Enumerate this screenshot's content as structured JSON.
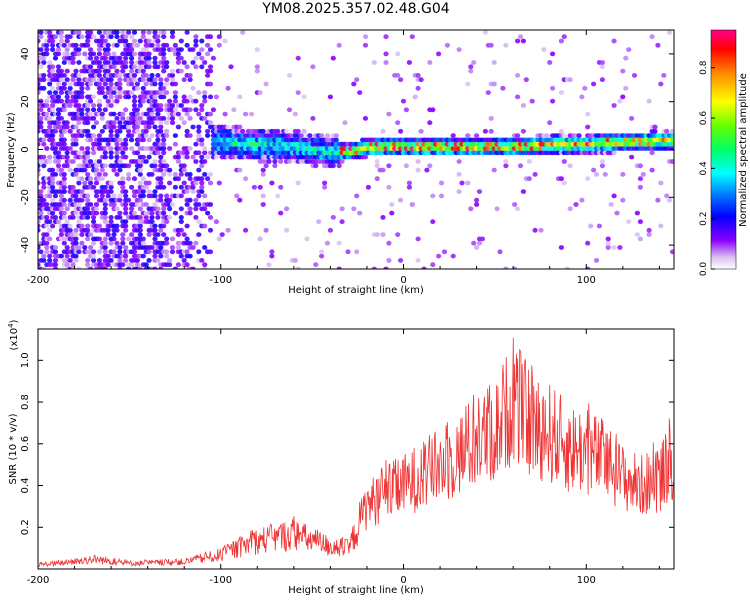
{
  "chart_data": [
    {
      "type": "heatmap",
      "title": "YM08.2025.357.02.48.G04",
      "xlabel": "Height of straight line (km)",
      "ylabel": "Frequency (Hz)",
      "xlim": [
        -200,
        148
      ],
      "ylim": [
        -50,
        50
      ],
      "xticks": [
        -200,
        -100,
        0,
        100
      ],
      "xtick_labels": [
        "-200",
        "-100",
        "0",
        "100"
      ],
      "yticks": [
        -40,
        -20,
        0,
        20,
        40
      ],
      "ytick_labels": [
        "-40",
        "-20",
        "0",
        "20",
        "40"
      ],
      "colorbar": {
        "label": "Normalized spectral amplitude",
        "range": [
          0,
          0.95
        ],
        "ticks": [
          0,
          0.2,
          0.4,
          0.6,
          0.8
        ],
        "tick_labels": [
          "0.0",
          "0.2",
          "0.4",
          "0.6",
          "0.8"
        ],
        "colormap": "rainbow"
      },
      "description_regions": [
        {
          "x_range": [
            -200,
            -105
          ],
          "pattern": "scattered noise",
          "amplitude": 0.05
        },
        {
          "x_range": [
            -105,
            -35
          ],
          "pattern": "band centered near 4 Hz to -1 Hz",
          "amplitude": 0.25
        },
        {
          "x_range": [
            -35,
            148
          ],
          "pattern": "narrow band centered near 1-3 Hz",
          "amplitude": 0.5
        }
      ],
      "ridge": {
        "x": [
          -110,
          -100,
          -80,
          -60,
          -40,
          -30,
          -20,
          0,
          20,
          40,
          60,
          80,
          100,
          120,
          148
        ],
        "y": [
          4,
          3,
          2,
          1,
          -1,
          -1,
          1,
          1,
          1,
          1,
          1,
          2,
          2,
          3,
          4
        ]
      }
    },
    {
      "type": "line",
      "xlabel": "Height of straight line (km)",
      "ylabel": "SNR (10 * v/v)",
      "y_multiplier": "(x10",
      "y_multiplier_exp": "4",
      "xlim": [
        -200,
        148
      ],
      "ylim": [
        0,
        1.15
      ],
      "xticks": [
        -200,
        -100,
        0,
        100
      ],
      "xtick_labels": [
        "-200",
        "-100",
        "0",
        "100"
      ],
      "yticks": [
        0.2,
        0.4,
        0.6,
        0.8,
        1.0
      ],
      "ytick_labels": [
        "0.2",
        "0.4",
        "0.6",
        "0.8",
        "1.0"
      ],
      "color": "#ee3333",
      "envelope": {
        "x": [
          -200,
          -180,
          -170,
          -150,
          -120,
          -100,
          -90,
          -80,
          -70,
          -60,
          -50,
          -40,
          -30,
          -25,
          -20,
          -10,
          0,
          10,
          20,
          30,
          40,
          50,
          60,
          70,
          80,
          90,
          100,
          110,
          120,
          130,
          140,
          148
        ],
        "y": [
          0.03,
          0.05,
          0.07,
          0.04,
          0.05,
          0.1,
          0.15,
          0.2,
          0.22,
          0.25,
          0.2,
          0.16,
          0.14,
          0.3,
          0.42,
          0.5,
          0.55,
          0.62,
          0.68,
          0.75,
          0.85,
          0.9,
          1.12,
          0.95,
          0.9,
          0.8,
          0.78,
          0.72,
          0.6,
          0.55,
          0.6,
          0.75
        ]
      }
    }
  ]
}
